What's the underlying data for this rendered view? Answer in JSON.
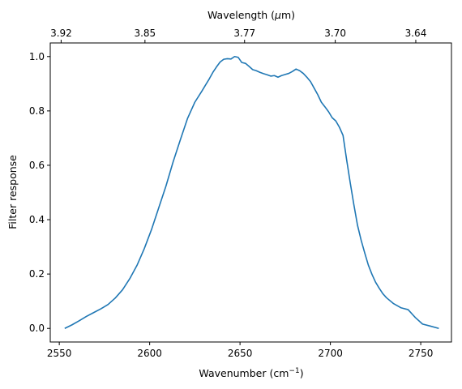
{
  "chart_data": {
    "type": "line",
    "title": "",
    "xlabel": "Wavenumber (cm",
    "xlabel_sup": "−1",
    "xlabel_suffix": ")",
    "ylabel": "Filter response",
    "top_xlabel": "Wavelength (",
    "top_xlabel_mu": "μ",
    "top_xlabel_suffix": "m)",
    "xlim": [
      2545,
      2767
    ],
    "ylim": [
      -0.05,
      1.05
    ],
    "grid": false,
    "legend": "none",
    "line_color": "#1f77b4",
    "x_ticks": [
      {
        "value": 2550,
        "label": "2550"
      },
      {
        "value": 2600,
        "label": "2600"
      },
      {
        "value": 2650,
        "label": "2650"
      },
      {
        "value": 2700,
        "label": "2700"
      },
      {
        "value": 2750,
        "label": "2750"
      }
    ],
    "y_ticks": [
      {
        "value": 0.0,
        "label": "0.0"
      },
      {
        "value": 0.2,
        "label": "0.2"
      },
      {
        "value": 0.4,
        "label": "0.4"
      },
      {
        "value": 0.6,
        "label": "0.6"
      },
      {
        "value": 0.8,
        "label": "0.8"
      },
      {
        "value": 1.0,
        "label": "1.0"
      }
    ],
    "top_ticks": [
      {
        "wavelength": 3.92,
        "label": "3.92"
      },
      {
        "wavelength": 3.85,
        "label": "3.85"
      },
      {
        "wavelength": 3.77,
        "label": "3.77"
      },
      {
        "wavelength": 3.7,
        "label": "3.70"
      },
      {
        "wavelength": 3.64,
        "label": "3.64"
      }
    ],
    "series": [
      {
        "x": [
          2553,
          2557,
          2561,
          2565,
          2569,
          2573,
          2577,
          2581,
          2585,
          2589,
          2593,
          2597,
          2601,
          2605,
          2609,
          2613,
          2617,
          2621,
          2625,
          2629,
          2633,
          2635,
          2637,
          2639,
          2641,
          2643,
          2645,
          2647,
          2649,
          2651,
          2653,
          2655,
          2657,
          2659,
          2661,
          2663,
          2665,
          2667,
          2669,
          2671,
          2673,
          2675,
          2677,
          2679,
          2681,
          2683,
          2685,
          2687,
          2689,
          2691,
          2693,
          2695,
          2697,
          2699,
          2701,
          2703,
          2705,
          2707,
          2709,
          2711,
          2713,
          2715,
          2717,
          2719,
          2721,
          2723,
          2725,
          2727,
          2729,
          2731,
          2735,
          2739,
          2743,
          2747,
          2751,
          2755,
          2760
        ],
        "y": [
          0.0,
          0.013,
          0.028,
          0.044,
          0.058,
          0.072,
          0.088,
          0.112,
          0.142,
          0.183,
          0.232,
          0.293,
          0.363,
          0.443,
          0.523,
          0.613,
          0.694,
          0.773,
          0.832,
          0.874,
          0.918,
          0.942,
          0.962,
          0.98,
          0.99,
          0.992,
          0.991,
          1.0,
          0.997,
          0.978,
          0.975,
          0.964,
          0.952,
          0.948,
          0.942,
          0.937,
          0.933,
          0.928,
          0.93,
          0.924,
          0.93,
          0.934,
          0.938,
          0.945,
          0.954,
          0.948,
          0.938,
          0.924,
          0.908,
          0.884,
          0.86,
          0.832,
          0.815,
          0.797,
          0.775,
          0.763,
          0.74,
          0.71,
          0.62,
          0.535,
          0.455,
          0.38,
          0.325,
          0.278,
          0.233,
          0.199,
          0.17,
          0.148,
          0.128,
          0.113,
          0.091,
          0.076,
          0.069,
          0.04,
          0.016,
          0.009,
          0.0
        ]
      }
    ]
  }
}
